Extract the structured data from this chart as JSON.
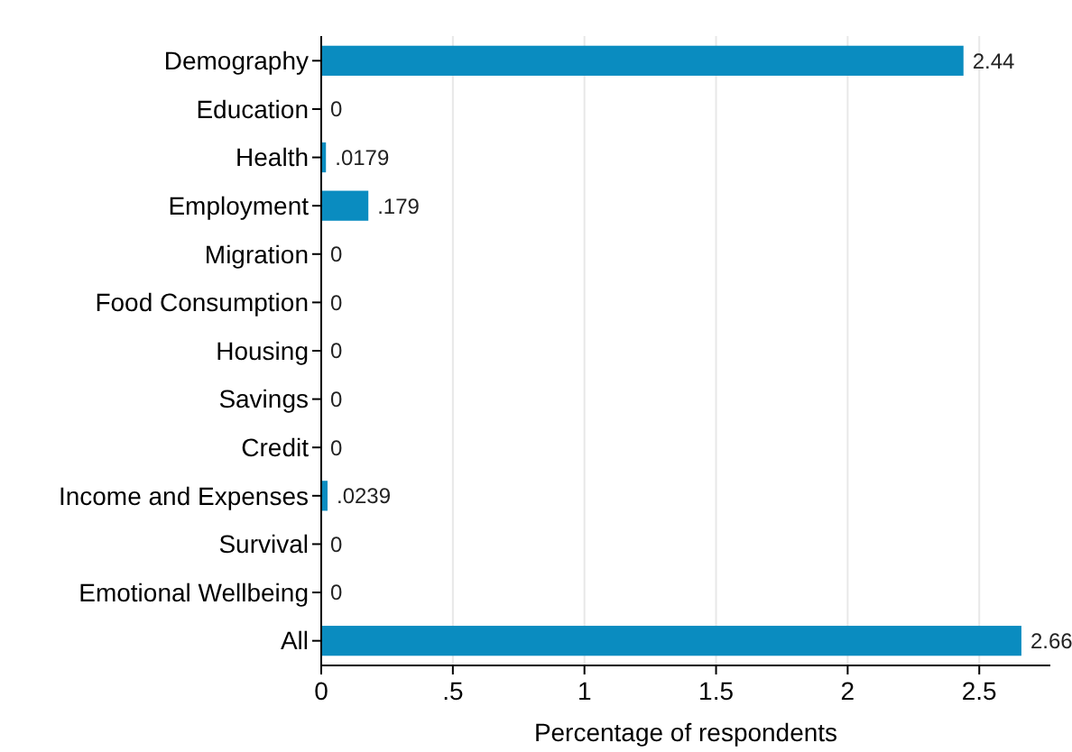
{
  "chart_data": {
    "type": "bar",
    "orientation": "horizontal",
    "xlabel": "Percentage of respondents",
    "categories": [
      "Demography",
      "Education",
      "Health",
      "Employment",
      "Migration",
      "Food Consumption",
      "Housing",
      "Savings",
      "Credit",
      "Income and Expenses",
      "Survival",
      "Emotional Wellbeing",
      "All"
    ],
    "values": [
      2.44,
      0,
      0.0179,
      0.179,
      0,
      0,
      0,
      0,
      0,
      0.0239,
      0,
      0,
      2.66
    ],
    "value_labels": [
      "2.44",
      "0",
      ".0179",
      ".179",
      "0",
      "0",
      "0",
      "0",
      "0",
      ".0239",
      "0",
      "0",
      "2.66"
    ],
    "color": "#0a8cc0",
    "xlim": [
      0,
      2.77
    ],
    "xticks": [
      0,
      {
        "value": 0.5,
        "label": ".5"
      },
      1,
      1.5,
      2,
      2.5
    ],
    "grid": "x"
  }
}
